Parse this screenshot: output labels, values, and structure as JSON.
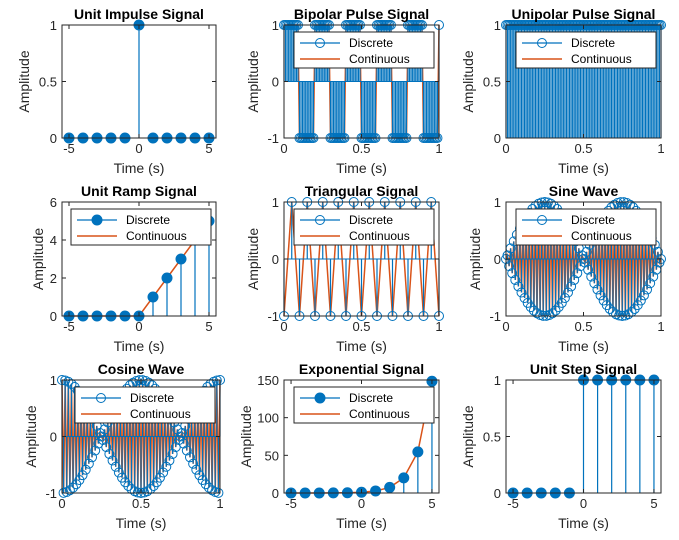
{
  "colors": {
    "discrete": "#0072BD",
    "continuous": "#D95319",
    "axes": "#262626"
  },
  "chart_data": [
    {
      "type": "stem",
      "title": "Unit Impulse Signal",
      "xlabel": "Time (s)",
      "ylabel": "Amplitude",
      "xlim": [
        -5.5,
        5.5
      ],
      "ylim": [
        0,
        1
      ],
      "xticks": [
        -5,
        0,
        5
      ],
      "xticklabels": [
        "-5",
        "0",
        "5"
      ],
      "yticks": [
        0,
        0.5,
        1
      ],
      "yticklabels": [
        "0",
        "0.5",
        "1"
      ],
      "marker": "filled",
      "legend": null,
      "continuous": false,
      "x": [
        -5,
        -4,
        -3,
        -2,
        -1,
        0,
        1,
        2,
        3,
        4,
        5
      ],
      "y": [
        0,
        0,
        0,
        0,
        0,
        1,
        0,
        0,
        0,
        0,
        0
      ]
    },
    {
      "type": "stem",
      "title": "Bipolar Pulse Signal",
      "xlabel": "Time (s)",
      "ylabel": "Amplitude",
      "xlim": [
        0,
        1
      ],
      "ylim": [
        -1,
        1
      ],
      "xticks": [
        0,
        0.5,
        1
      ],
      "xticklabels": [
        "0",
        "0.5",
        "1"
      ],
      "yticks": [
        -1,
        0,
        1
      ],
      "yticklabels": [
        "-1",
        "0",
        "1"
      ],
      "marker": "open",
      "legend": {
        "location": "top-right",
        "entries": [
          "Discrete",
          "Continuous"
        ]
      },
      "continuous": true,
      "generator": {
        "kind": "square",
        "n": 101,
        "t0": 0,
        "t1": 1,
        "period": 0.2
      }
    },
    {
      "type": "stem",
      "title": "Unipolar Pulse Signal",
      "xlabel": "Time (s)",
      "ylabel": "Amplitude",
      "xlim": [
        0,
        1
      ],
      "ylim": [
        0,
        1
      ],
      "xticks": [
        0,
        0.5,
        1
      ],
      "xticklabels": [
        "0",
        "0.5",
        "1"
      ],
      "yticks": [
        0,
        0.5,
        1
      ],
      "yticklabels": [
        "0",
        "0.5",
        "1"
      ],
      "marker": "open",
      "legend": {
        "location": "top-right",
        "entries": [
          "Discrete",
          "Continuous"
        ]
      },
      "continuous": true,
      "generator": {
        "kind": "constant",
        "n": 101,
        "t0": 0,
        "t1": 1,
        "value": 1
      }
    },
    {
      "type": "stem",
      "title": "Unit Ramp Signal",
      "xlabel": "Time (s)",
      "ylabel": "Amplitude",
      "xlim": [
        -5.5,
        5.5
      ],
      "ylim": [
        0,
        6
      ],
      "xticks": [
        -5,
        0,
        5
      ],
      "xticklabels": [
        "-5",
        "0",
        "5"
      ],
      "yticks": [
        0,
        2,
        4,
        6
      ],
      "yticklabels": [
        "0",
        "2",
        "4",
        "6"
      ],
      "marker": "filled",
      "legend": {
        "location": "top-right",
        "entries": [
          "Discrete",
          "Continuous"
        ]
      },
      "continuous": true,
      "x": [
        -5,
        -4,
        -3,
        -2,
        -1,
        0,
        1,
        2,
        3,
        4,
        5
      ],
      "y": [
        0,
        0,
        0,
        0,
        0,
        0,
        1,
        2,
        3,
        4,
        5
      ]
    },
    {
      "type": "stem",
      "title": "Triangular Signal",
      "xlabel": "Time (s)",
      "ylabel": "Amplitude",
      "xlim": [
        0,
        1
      ],
      "ylim": [
        -1,
        1
      ],
      "xticks": [
        0,
        0.5,
        1
      ],
      "xticklabels": [
        "0",
        "0.5",
        "1"
      ],
      "yticks": [
        -1,
        0,
        1
      ],
      "yticklabels": [
        "-1",
        "0",
        "1"
      ],
      "marker": "open",
      "legend": {
        "location": "top-right",
        "entries": [
          "Discrete",
          "Continuous"
        ]
      },
      "continuous": true,
      "generator": {
        "kind": "alternate",
        "n": 21,
        "t0": 0,
        "t1": 1,
        "values": [
          -1,
          1
        ]
      }
    },
    {
      "type": "stem",
      "title": "Sine Wave",
      "xlabel": "Time (s)",
      "ylabel": "Amplitude",
      "xlim": [
        0,
        1
      ],
      "ylim": [
        -1,
        1
      ],
      "xticks": [
        0,
        0.5,
        1
      ],
      "xticklabels": [
        "0",
        "0.5",
        "1"
      ],
      "yticks": [
        -1,
        0,
        1
      ],
      "yticklabels": [
        "-1",
        "0",
        "1"
      ],
      "marker": "open",
      "legend": {
        "location": "top-right",
        "entries": [
          "Discrete",
          "Continuous"
        ]
      },
      "continuous": true,
      "generator": {
        "kind": "sin",
        "n": 101,
        "t0": 0,
        "t1": 1,
        "freq": 49
      }
    },
    {
      "type": "stem",
      "title": "Cosine Wave",
      "xlabel": "Time (s)",
      "ylabel": "Amplitude",
      "xlim": [
        0,
        1
      ],
      "ylim": [
        -1,
        1
      ],
      "xticks": [
        0,
        0.5,
        1
      ],
      "xticklabels": [
        "0",
        "0.5",
        "1"
      ],
      "yticks": [
        -1,
        0,
        1
      ],
      "yticklabels": [
        "-1",
        "0",
        "1"
      ],
      "marker": "open",
      "legend": {
        "location": "top-right",
        "entries": [
          "Discrete",
          "Continuous"
        ]
      },
      "continuous": true,
      "generator": {
        "kind": "cos",
        "n": 101,
        "t0": 0,
        "t1": 1,
        "freq": 49
      }
    },
    {
      "type": "stem",
      "title": "Exponential Signal",
      "xlabel": "Time (s)",
      "ylabel": "Amplitude",
      "xlim": [
        -5.5,
        5.5
      ],
      "ylim": [
        0,
        150
      ],
      "xticks": [
        -5,
        0,
        5
      ],
      "xticklabels": [
        "-5",
        "0",
        "5"
      ],
      "yticks": [
        0,
        50,
        100,
        150
      ],
      "yticklabels": [
        "0",
        "50",
        "100",
        "150"
      ],
      "marker": "filled",
      "legend": {
        "location": "top-right",
        "entries": [
          "Discrete",
          "Continuous"
        ]
      },
      "continuous": true,
      "x": [
        -5,
        -4,
        -3,
        -2,
        -1,
        0,
        1,
        2,
        3,
        4,
        5
      ],
      "y": [
        0.0067,
        0.018,
        0.05,
        0.135,
        0.368,
        1,
        2.72,
        7.39,
        20.09,
        54.6,
        148.4
      ]
    },
    {
      "type": "stem",
      "title": "Unit Step Signal",
      "xlabel": "Time (s)",
      "ylabel": "Amplitude",
      "xlim": [
        -5.5,
        5.5
      ],
      "ylim": [
        0,
        1
      ],
      "xticks": [
        -5,
        0,
        5
      ],
      "xticklabels": [
        "-5",
        "0",
        "5"
      ],
      "yticks": [
        0,
        0.5,
        1
      ],
      "yticklabels": [
        "0",
        "0.5",
        "1"
      ],
      "marker": "filled",
      "legend": null,
      "continuous": false,
      "x": [
        -5,
        -4,
        -3,
        -2,
        -1,
        0,
        1,
        2,
        3,
        4,
        5
      ],
      "y": [
        0,
        0,
        0,
        0,
        0,
        1,
        1,
        1,
        1,
        1,
        1
      ]
    }
  ]
}
